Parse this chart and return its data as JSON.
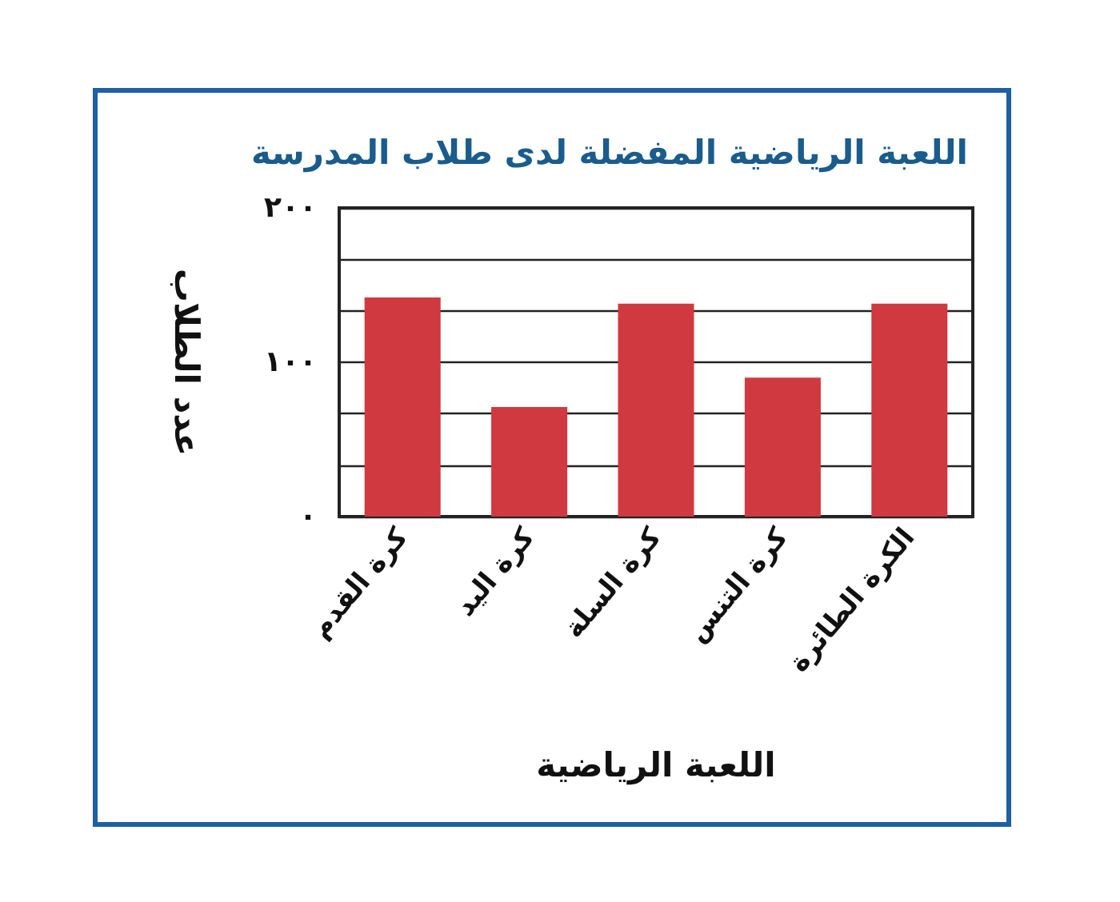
{
  "chart_data": {
    "type": "bar",
    "title": "اللعبة الرياضية المفضلة لدى طلاب المدرسة",
    "xlabel": "اللعبة الرياضية",
    "ylabel": "عدد الطلاب",
    "categories": [
      "كرة القدم",
      "كرة اليد",
      "كرة السلة",
      "كرة التنس",
      "الكرة الطائرة"
    ],
    "values": [
      142,
      71,
      138,
      90,
      138
    ],
    "color": "#d0393f",
    "ylim": [
      0,
      200
    ],
    "yticks": [
      {
        "value": 0,
        "label": "٠"
      },
      {
        "value": 33.3,
        "label": null
      },
      {
        "value": 66.7,
        "label": null
      },
      {
        "value": 100,
        "label": "١٠٠"
      },
      {
        "value": 133.3,
        "label": null
      },
      {
        "value": 166.7,
        "label": null
      },
      {
        "value": 200,
        "label": "٢٠٠"
      }
    ],
    "grid": "y"
  }
}
